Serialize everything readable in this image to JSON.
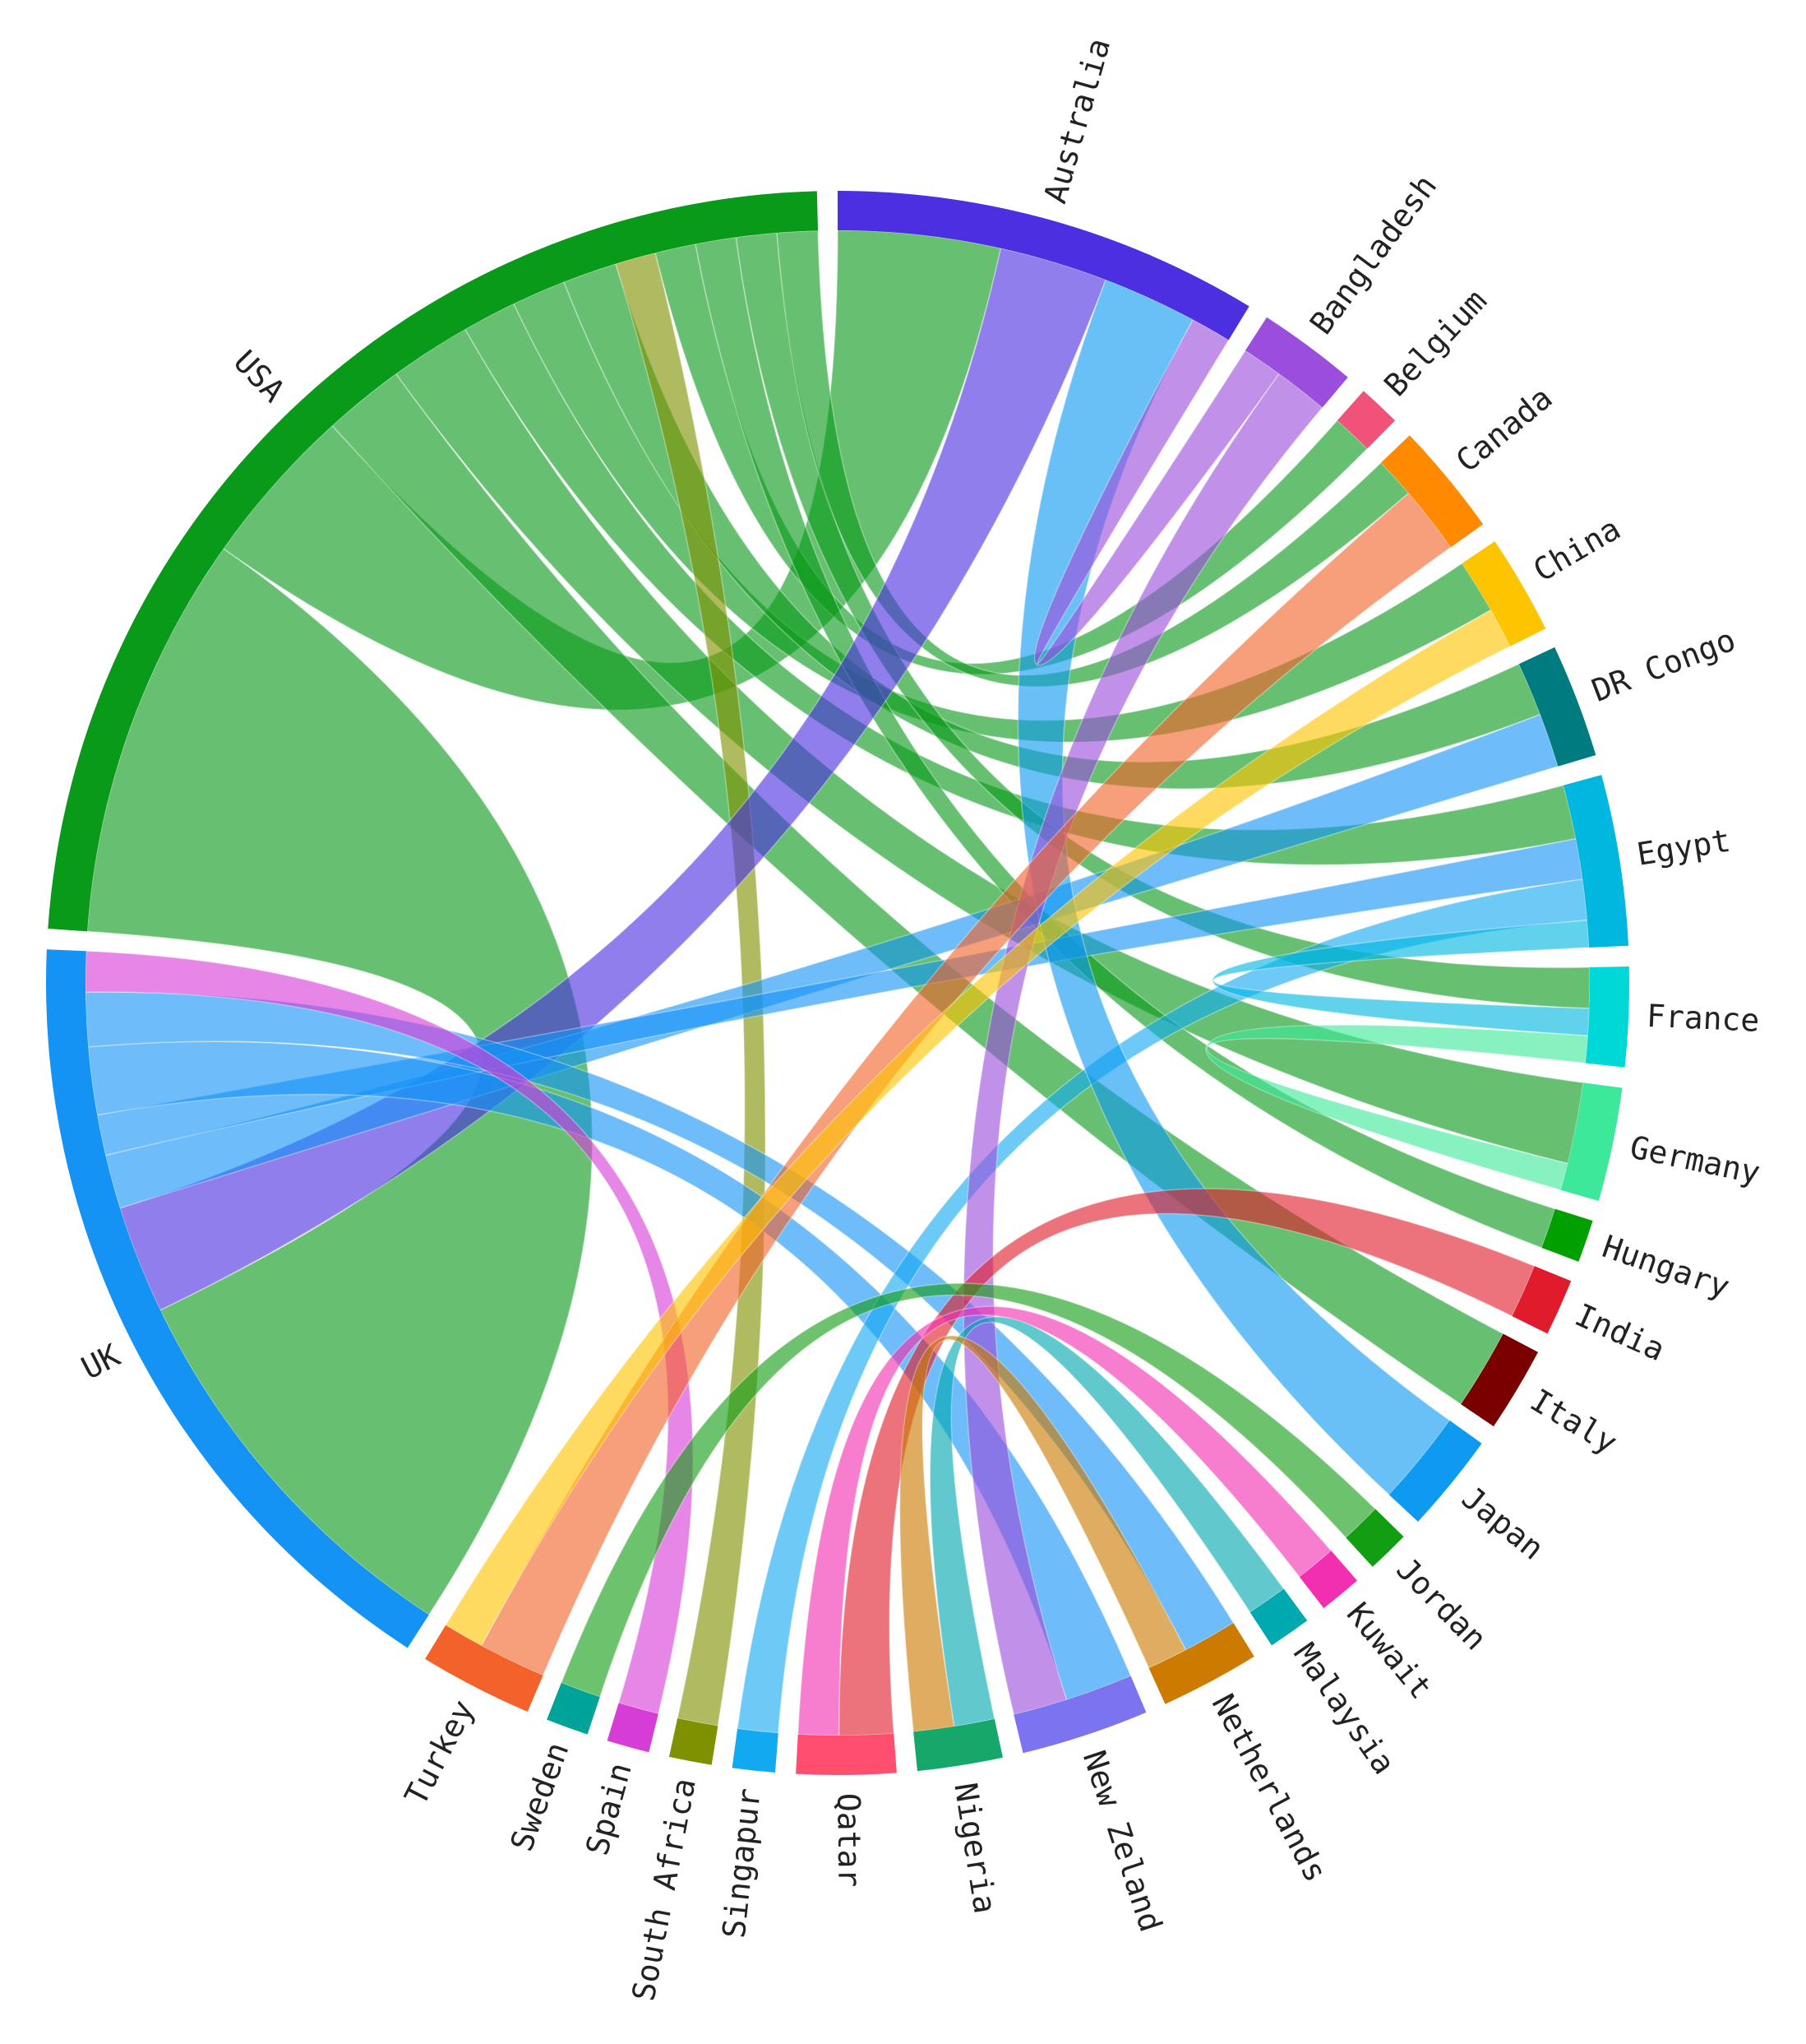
{
  "chart_data": {
    "type": "chord",
    "nodes": [
      {
        "name": "Australia",
        "color": "#4b2fe0"
      },
      {
        "name": "Bangladesh",
        "color": "#9b4ddb"
      },
      {
        "name": "Belgium",
        "color": "#f0527a"
      },
      {
        "name": "Canada",
        "color": "#ff8a00"
      },
      {
        "name": "China",
        "color": "#ffc400"
      },
      {
        "name": "DR Congo",
        "color": "#007b80"
      },
      {
        "name": "Egypt",
        "color": "#00b7e0"
      },
      {
        "name": "France",
        "color": "#00d8d8"
      },
      {
        "name": "Germany",
        "color": "#3de89a"
      },
      {
        "name": "Hungary",
        "color": "#00a000"
      },
      {
        "name": "India",
        "color": "#e01c2c"
      },
      {
        "name": "Italy",
        "color": "#7a0000"
      },
      {
        "name": "Japan",
        "color": "#0d9af0"
      },
      {
        "name": "Jordan",
        "color": "#139d13"
      },
      {
        "name": "Kuwait",
        "color": "#f22fb0"
      },
      {
        "name": "Malaysia",
        "color": "#00a8b0"
      },
      {
        "name": "Netherlands",
        "color": "#cc7a00"
      },
      {
        "name": "New Zeland",
        "color": "#7b73f0"
      },
      {
        "name": "Nigeria",
        "color": "#15a86a"
      },
      {
        "name": "Qatar",
        "color": "#ff4e6e"
      },
      {
        "name": "Singapur",
        "color": "#13a9f0"
      },
      {
        "name": "South Africa",
        "color": "#7f9100"
      },
      {
        "name": "Spain",
        "color": "#d63cd6"
      },
      {
        "name": "Sweden",
        "color": "#00a398"
      },
      {
        "name": "Turkey",
        "color": "#f2622a"
      },
      {
        "name": "UK",
        "color": "#1593f5"
      },
      {
        "name": "USA",
        "color": "#0a9a1a"
      }
    ],
    "links": [
      {
        "source": "USA",
        "target": "UK",
        "value": 30
      },
      {
        "source": "USA",
        "target": "Australia",
        "value": 12
      },
      {
        "source": "USA",
        "target": "Italy",
        "value": 6
      },
      {
        "source": "USA",
        "target": "Germany",
        "value": 6
      },
      {
        "source": "USA",
        "target": "Egypt",
        "value": 4
      },
      {
        "source": "USA",
        "target": "China",
        "value": 4
      },
      {
        "source": "USA",
        "target": "DR Congo",
        "value": 4
      },
      {
        "source": "South Africa",
        "target": "USA",
        "value": 3
      },
      {
        "source": "USA",
        "target": "Belgium",
        "value": 3
      },
      {
        "source": "USA",
        "target": "Hungary",
        "value": 3
      },
      {
        "source": "USA",
        "target": "France",
        "value": 3
      },
      {
        "source": "USA",
        "target": "Canada",
        "value": 3
      },
      {
        "source": "Australia",
        "target": "UK",
        "value": 8
      },
      {
        "source": "UK",
        "target": "DR Congo",
        "value": 4
      },
      {
        "source": "UK",
        "target": "Egypt",
        "value": 3
      },
      {
        "source": "UK",
        "target": "New Zeland",
        "value": 5
      },
      {
        "source": "UK",
        "target": "Netherlands",
        "value": 4
      },
      {
        "source": "Spain",
        "target": "UK",
        "value": 3
      },
      {
        "source": "Singapur",
        "target": "Egypt",
        "value": 3
      },
      {
        "source": "Japan",
        "target": "Australia",
        "value": 7
      },
      {
        "source": "Bangladesh",
        "target": "Australia",
        "value": 3
      },
      {
        "source": "Bangladesh",
        "target": "New Zeland",
        "value": 4
      },
      {
        "source": "Egypt",
        "target": "France",
        "value": 2
      },
      {
        "source": "Germany",
        "target": "France",
        "value": 2
      },
      {
        "source": "India",
        "target": "Qatar",
        "value": 4
      },
      {
        "source": "Jordan",
        "target": "Sweden",
        "value": 3
      },
      {
        "source": "Kuwait",
        "target": "Qatar",
        "value": 3
      },
      {
        "source": "Malaysia",
        "target": "Nigeria",
        "value": 3
      },
      {
        "source": "Netherlands",
        "target": "Nigeria",
        "value": 3
      },
      {
        "source": "Turkey",
        "target": "Canada",
        "value": 5
      },
      {
        "source": "China",
        "target": "Turkey",
        "value": 3
      }
    ]
  }
}
